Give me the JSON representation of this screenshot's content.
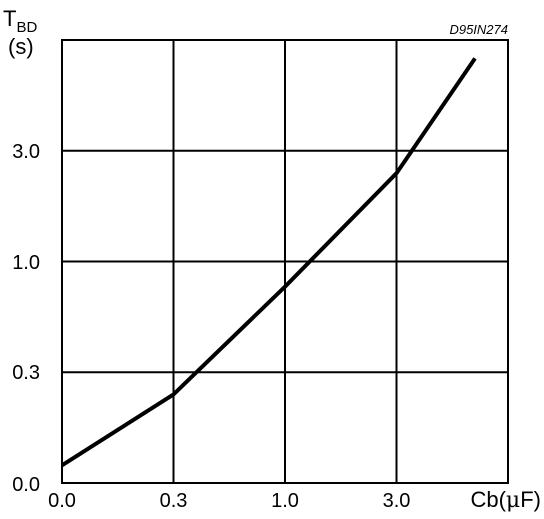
{
  "chart_data": {
    "type": "line",
    "code_label": "D95IN274",
    "ylabel": {
      "main": "T",
      "sub": "BD",
      "unit": "(s)"
    },
    "xlabel": {
      "prefix": "Cb(",
      "mu": "μ",
      "suffix": "F)"
    },
    "x_ticks": [
      "0.0",
      "0.3",
      "1.0",
      "3.0"
    ],
    "y_ticks": [
      "0.0",
      "0.3",
      "1.0",
      "3.0"
    ],
    "grid": true,
    "series": [
      {
        "x": [
          0.0,
          0.3,
          1.0,
          3.0,
          6.5
        ],
        "y": [
          0.048,
          0.24,
          0.76,
          2.4,
          7.5
        ]
      }
    ]
  }
}
